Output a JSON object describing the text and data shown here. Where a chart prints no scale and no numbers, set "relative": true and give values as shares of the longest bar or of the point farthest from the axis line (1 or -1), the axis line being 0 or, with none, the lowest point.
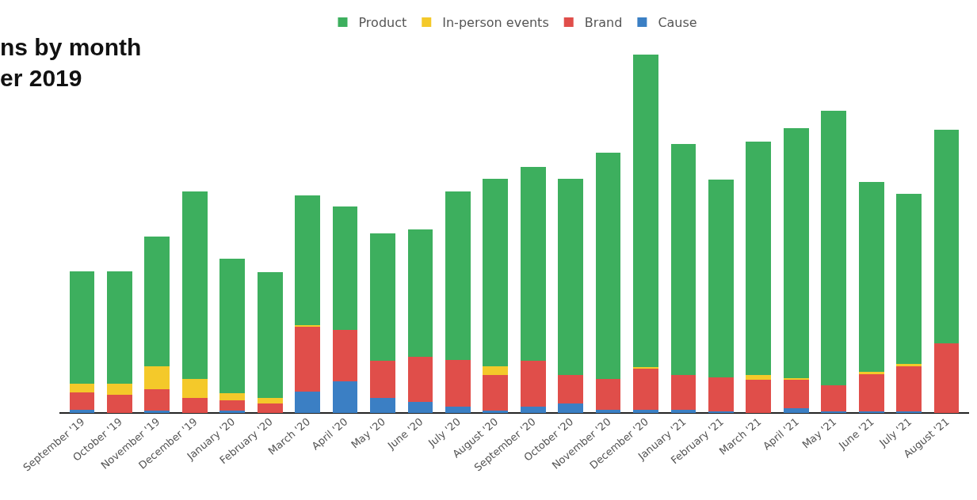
{
  "chart_data": {
    "type": "bar",
    "title": "ns by month\ner 2019",
    "relative": true,
    "stacked": true,
    "legend": "top",
    "categories": [
      "September '19",
      "October '19",
      "November '19",
      "December '19",
      "January '20",
      "February '20",
      "March '20",
      "April '20",
      "May '20",
      "June '20",
      "July '20",
      "August '20",
      "September '20",
      "October '20",
      "November '20",
      "December '20",
      "January '21",
      "February '21",
      "March '21",
      "April '21",
      "May '21",
      "June '21",
      "July '21",
      "August '21"
    ],
    "series": [
      {
        "name": "Cause",
        "color": "#3b7fc4",
        "values": [
          0.009,
          0,
          0.007,
          0,
          0.007,
          0,
          0.059,
          0.088,
          0.042,
          0.031,
          0.018,
          0.007,
          0.018,
          0.026,
          0.009,
          0.009,
          0.009,
          0.004,
          0,
          0.013,
          0.004,
          0.004,
          0.004,
          0
        ]
      },
      {
        "name": "Brand",
        "color": "#e04e4a",
        "values": [
          0.048,
          0.051,
          0.059,
          0.042,
          0.029,
          0.026,
          0.183,
          0.143,
          0.104,
          0.126,
          0.13,
          0.099,
          0.128,
          0.079,
          0.086,
          0.115,
          0.097,
          0.095,
          0.093,
          0.081,
          0.073,
          0.106,
          0.126,
          0.194
        ]
      },
      {
        "name": "In-person events",
        "color": "#f4c92a",
        "values": [
          0.024,
          0.031,
          0.064,
          0.053,
          0.02,
          0.015,
          0.004,
          0,
          0,
          0,
          0,
          0.024,
          0,
          0,
          0,
          0.004,
          0,
          0,
          0.013,
          0.004,
          0,
          0.004,
          0.007,
          0
        ]
      },
      {
        "name": "Product",
        "color": "#3daf5e",
        "values": [
          0.315,
          0.313,
          0.363,
          0.522,
          0.374,
          0.352,
          0.361,
          0.344,
          0.355,
          0.355,
          0.471,
          0.524,
          0.54,
          0.548,
          0.63,
          0.872,
          0.645,
          0.553,
          0.652,
          0.696,
          0.767,
          0.531,
          0.474,
          0.597
        ]
      }
    ]
  }
}
